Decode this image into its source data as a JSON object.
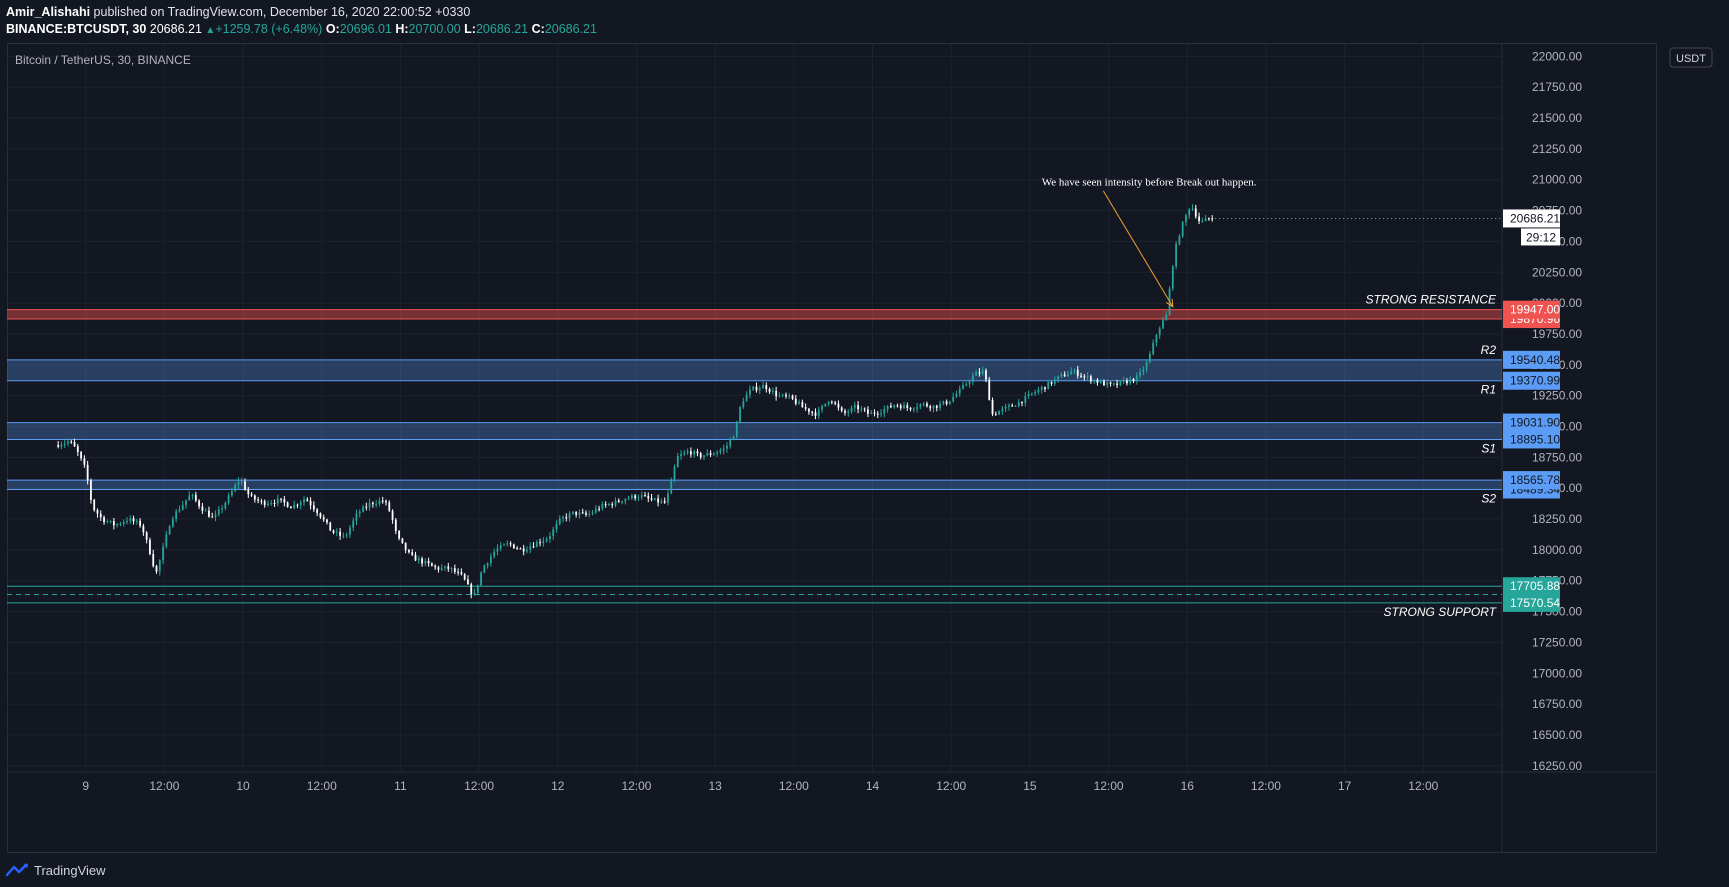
{
  "header": {
    "author": "Amir_Alishahi",
    "published": "published on TradingView.com, December 16, 2020 22:00:52 +0330"
  },
  "ohlc": {
    "symbol": "BINANCE:BTCUSDT, 30",
    "last": "20686.21",
    "change": "+1259.78 (+6.48%)",
    "o_label": "O:",
    "o": "20696.01",
    "h_label": "H:",
    "h": "20700.00",
    "l_label": "L:",
    "l": "20686.21",
    "c_label": "C:",
    "c": "20686.21"
  },
  "footer": {
    "brand": "TradingView"
  },
  "colors": {
    "background": "#131722",
    "up": "#26a69a",
    "down": "#ffffff",
    "resistance": "#ef5350",
    "zone": "#5b9cf6",
    "support": "#26a69a",
    "arrow": "#f0a030"
  },
  "chart_data": {
    "type": "candlestick",
    "title": "Bitcoin / TetherUS, 30, BINANCE",
    "currency_label": "USDT",
    "ylim": [
      16200,
      22100
    ],
    "y_ticks": [
      16250,
      16500,
      16750,
      17000,
      17250,
      17500,
      17750,
      18000,
      18250,
      18500,
      18750,
      19000,
      19250,
      19500,
      19750,
      20000,
      20250,
      20500,
      20750,
      21000,
      21250,
      21500,
      21750,
      22000
    ],
    "y_tick_labels": [
      "16250.00",
      "16500.00",
      "16750.00",
      "17000.00",
      "17250.00",
      "17500.00",
      "17750.00",
      "18000.00",
      "18250.00",
      "18500.00",
      "18750.00",
      "19000.00",
      "19250.00",
      "19500.00",
      "19750.00",
      "20000.00",
      "20250.00",
      "20500.00",
      "20750.00",
      "21000.00",
      "21250.00",
      "21500.00",
      "21750.00",
      "22000.00"
    ],
    "x_range_hours": [
      -12,
      216
    ],
    "x_ticks": [
      {
        "h": 0,
        "label": "9"
      },
      {
        "h": 12,
        "label": "12:00"
      },
      {
        "h": 24,
        "label": "10"
      },
      {
        "h": 36,
        "label": "12:00"
      },
      {
        "h": 48,
        "label": "11"
      },
      {
        "h": 60,
        "label": "12:00"
      },
      {
        "h": 72,
        "label": "12"
      },
      {
        "h": 84,
        "label": "12:00"
      },
      {
        "h": 96,
        "label": "13"
      },
      {
        "h": 108,
        "label": "12:00"
      },
      {
        "h": 120,
        "label": "14"
      },
      {
        "h": 132,
        "label": "12:00"
      },
      {
        "h": 144,
        "label": "15"
      },
      {
        "h": 156,
        "label": "12:00"
      },
      {
        "h": 168,
        "label": "16"
      },
      {
        "h": 180,
        "label": "12:00"
      },
      {
        "h": 192,
        "label": "17"
      },
      {
        "h": 204,
        "label": "12:00"
      }
    ],
    "price_path": [
      [
        -4.2,
        18850
      ],
      [
        -2,
        18880
      ],
      [
        -1,
        18820
      ],
      [
        0.5,
        18650
      ],
      [
        1.5,
        18350
      ],
      [
        3,
        18250
      ],
      [
        5,
        18200
      ],
      [
        7,
        18250
      ],
      [
        9,
        18200
      ],
      [
        10.5,
        17950
      ],
      [
        11.2,
        17800
      ],
      [
        12,
        17950
      ],
      [
        13.5,
        18250
      ],
      [
        15,
        18350
      ],
      [
        16.5,
        18450
      ],
      [
        18,
        18350
      ],
      [
        20,
        18250
      ],
      [
        22,
        18400
      ],
      [
        24,
        18580
      ],
      [
        25.5,
        18430
      ],
      [
        27.5,
        18380
      ],
      [
        30,
        18400
      ],
      [
        32,
        18350
      ],
      [
        34,
        18420
      ],
      [
        36,
        18300
      ],
      [
        38,
        18150
      ],
      [
        40,
        18100
      ],
      [
        42,
        18300
      ],
      [
        44,
        18380
      ],
      [
        46,
        18400
      ],
      [
        47,
        18300
      ],
      [
        48,
        18100
      ],
      [
        50,
        17950
      ],
      [
        52,
        17900
      ],
      [
        54,
        17850
      ],
      [
        56,
        17850
      ],
      [
        58,
        17780
      ],
      [
        59.7,
        17620
      ],
      [
        61,
        17850
      ],
      [
        63,
        18000
      ],
      [
        65,
        18050
      ],
      [
        67,
        18000
      ],
      [
        69,
        18050
      ],
      [
        71,
        18100
      ],
      [
        73,
        18250
      ],
      [
        75,
        18300
      ],
      [
        77,
        18280
      ],
      [
        79,
        18350
      ],
      [
        81,
        18380
      ],
      [
        83,
        18420
      ],
      [
        85,
        18440
      ],
      [
        87,
        18400
      ],
      [
        89,
        18380
      ],
      [
        90.7,
        18750
      ],
      [
        92.5,
        18800
      ],
      [
        94,
        18760
      ],
      [
        96,
        18780
      ],
      [
        98,
        18820
      ],
      [
        99.5,
        18950
      ],
      [
        100.5,
        19200
      ],
      [
        102,
        19300
      ],
      [
        104,
        19330
      ],
      [
        106,
        19250
      ],
      [
        108,
        19230
      ],
      [
        110,
        19150
      ],
      [
        112,
        19100
      ],
      [
        114,
        19230
      ],
      [
        116,
        19100
      ],
      [
        118,
        19160
      ],
      [
        120,
        19100
      ],
      [
        122,
        19130
      ],
      [
        124,
        19180
      ],
      [
        126,
        19150
      ],
      [
        128,
        19180
      ],
      [
        130,
        19160
      ],
      [
        132,
        19200
      ],
      [
        134,
        19300
      ],
      [
        136,
        19420
      ],
      [
        137.5,
        19450
      ],
      [
        138.8,
        19100
      ],
      [
        141,
        19150
      ],
      [
        143,
        19200
      ],
      [
        145,
        19270
      ],
      [
        147,
        19330
      ],
      [
        149,
        19400
      ],
      [
        151,
        19450
      ],
      [
        153,
        19400
      ],
      [
        155,
        19360
      ],
      [
        157,
        19330
      ],
      [
        159,
        19360
      ],
      [
        161,
        19400
      ],
      [
        162.5,
        19530
      ],
      [
        164,
        19780
      ],
      [
        165.3,
        19900
      ],
      [
        166.5,
        20400
      ],
      [
        167.5,
        20600
      ],
      [
        169,
        20800
      ],
      [
        170.5,
        20650
      ],
      [
        171.8,
        20686
      ]
    ],
    "levels": [
      {
        "name": "STRONG RESISTANCE",
        "kind": "resistance",
        "top": 19947.0,
        "bottom": 19870.96,
        "top_label": "19947.00",
        "bottom_label": "19870.96",
        "text": "STRONG RESISTANCE"
      },
      {
        "name": "R2 / R1",
        "kind": "zone",
        "top": 19540.48,
        "bottom": 19370.99,
        "top_label": "19540.48",
        "bottom_label": "19370.99",
        "text_top": "R2",
        "text_bottom": "R1"
      },
      {
        "name": "S1",
        "kind": "zone",
        "top": 19031.9,
        "bottom": 18895.1,
        "top_label": "19031.90",
        "bottom_label": "18895.10",
        "text_bottom": "S1"
      },
      {
        "name": "S2",
        "kind": "zone",
        "top": 18565.78,
        "bottom": 18489.34,
        "top_label": "18565.78",
        "bottom_label": "18489.34",
        "text_bottom": "S2"
      },
      {
        "name": "STRONG SUPPORT",
        "kind": "support",
        "top": 17705.88,
        "bottom": 17570.54,
        "top_label": "17705.88",
        "bottom_label": "17570.54",
        "text": "STRONG SUPPORT"
      }
    ],
    "last_price": 20686.21,
    "last_price_label": "20686.21",
    "countdown": "29:12",
    "annotation": {
      "text": "We have seen intensity before Break out happen.",
      "text_at": [
        145.8,
        20985
      ],
      "arrow_from": [
        155.2,
        20910
      ],
      "arrow_to": [
        165.8,
        19970
      ]
    }
  }
}
